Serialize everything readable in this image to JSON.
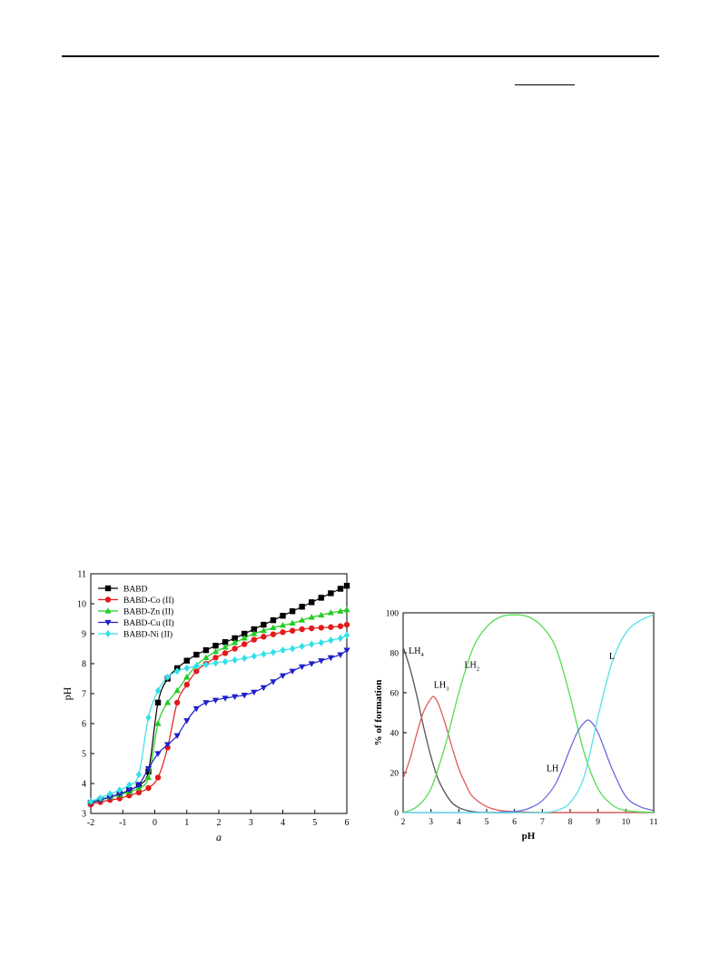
{
  "chart_data": [
    {
      "type": "line",
      "xlabel": "a",
      "ylabel": "pH",
      "xlim": [
        -2,
        6
      ],
      "ylim": [
        3,
        11
      ],
      "xticks": [
        "-2",
        "-1",
        "0",
        "1",
        "2",
        "3",
        "4",
        "5",
        "6"
      ],
      "yticks": [
        "3",
        "4",
        "5",
        "6",
        "7",
        "8",
        "9",
        "10",
        "11"
      ],
      "legend_position": "top-left",
      "grid": false,
      "series": [
        {
          "name": "BABD",
          "color": "#000000",
          "marker": "square",
          "x": [
            -2,
            -1.7,
            -1.4,
            -1.1,
            -0.8,
            -0.5,
            -0.2,
            0.1,
            0.4,
            0.7,
            1,
            1.3,
            1.6,
            1.9,
            2.2,
            2.5,
            2.8,
            3.1,
            3.4,
            3.7,
            4,
            4.3,
            4.6,
            4.9,
            5.2,
            5.5,
            5.8,
            6
          ],
          "y": [
            3.35,
            3.45,
            3.55,
            3.65,
            3.78,
            3.95,
            4.4,
            6.7,
            7.5,
            7.85,
            8.1,
            8.3,
            8.45,
            8.6,
            8.72,
            8.85,
            9.0,
            9.15,
            9.3,
            9.45,
            9.6,
            9.75,
            9.9,
            10.05,
            10.2,
            10.35,
            10.5,
            10.6
          ]
        },
        {
          "name": "BABD-Co (II)",
          "color": "#e41a1c",
          "marker": "circle",
          "x": [
            -2,
            -1.7,
            -1.4,
            -1.1,
            -0.8,
            -0.5,
            -0.2,
            0.1,
            0.4,
            0.7,
            1,
            1.3,
            1.6,
            1.9,
            2.2,
            2.5,
            2.8,
            3.1,
            3.4,
            3.7,
            4,
            4.3,
            4.6,
            4.9,
            5.2,
            5.5,
            5.8,
            6
          ],
          "y": [
            3.3,
            3.38,
            3.45,
            3.5,
            3.6,
            3.7,
            3.85,
            4.2,
            5.2,
            6.7,
            7.3,
            7.75,
            8.0,
            8.2,
            8.35,
            8.5,
            8.65,
            8.8,
            8.9,
            8.98,
            9.05,
            9.1,
            9.15,
            9.18,
            9.2,
            9.22,
            9.25,
            9.3
          ]
        },
        {
          "name": "BABD-Zn (II)",
          "color": "#22cc22",
          "marker": "triangle-up",
          "x": [
            -2,
            -1.7,
            -1.4,
            -1.1,
            -0.8,
            -0.5,
            -0.2,
            0.1,
            0.4,
            0.7,
            1,
            1.3,
            1.6,
            1.9,
            2.2,
            2.5,
            2.8,
            3.1,
            3.4,
            3.7,
            4,
            4.3,
            4.6,
            4.9,
            5.2,
            5.5,
            5.8,
            6
          ],
          "y": [
            3.4,
            3.48,
            3.55,
            3.62,
            3.72,
            3.85,
            4.2,
            6.0,
            6.7,
            7.1,
            7.55,
            7.95,
            8.2,
            8.4,
            8.55,
            8.7,
            8.85,
            9.0,
            9.1,
            9.2,
            9.28,
            9.35,
            9.45,
            9.55,
            9.62,
            9.7,
            9.75,
            9.8
          ]
        },
        {
          "name": "BABD-Cu (II)",
          "color": "#1f1fcc",
          "marker": "triangle-down",
          "x": [
            -2,
            -1.7,
            -1.4,
            -1.1,
            -0.8,
            -0.5,
            -0.2,
            0.1,
            0.4,
            0.7,
            1,
            1.3,
            1.6,
            1.9,
            2.2,
            2.5,
            2.8,
            3.1,
            3.4,
            3.7,
            4,
            4.3,
            4.6,
            4.9,
            5.2,
            5.5,
            5.8,
            6
          ],
          "y": [
            3.35,
            3.45,
            3.55,
            3.65,
            3.78,
            3.95,
            4.5,
            5.0,
            5.3,
            5.6,
            6.1,
            6.5,
            6.7,
            6.78,
            6.85,
            6.9,
            6.95,
            7.05,
            7.2,
            7.4,
            7.6,
            7.75,
            7.9,
            8.0,
            8.1,
            8.2,
            8.3,
            8.45
          ]
        },
        {
          "name": "BABD-Ni (II)",
          "color": "#33e0e8",
          "marker": "diamond",
          "x": [
            -2,
            -1.7,
            -1.4,
            -1.1,
            -0.8,
            -0.5,
            -0.2,
            0.1,
            0.4,
            0.7,
            1,
            1.3,
            1.6,
            1.9,
            2.2,
            2.5,
            2.8,
            3.1,
            3.4,
            3.7,
            4,
            4.3,
            4.6,
            4.9,
            5.2,
            5.5,
            5.8,
            6
          ],
          "y": [
            3.4,
            3.52,
            3.65,
            3.78,
            3.95,
            4.3,
            6.2,
            7.1,
            7.55,
            7.75,
            7.85,
            7.92,
            7.97,
            8.02,
            8.07,
            8.12,
            8.18,
            8.25,
            8.32,
            8.38,
            8.45,
            8.5,
            8.58,
            8.65,
            8.7,
            8.78,
            8.85,
            8.95
          ]
        }
      ]
    },
    {
      "type": "line",
      "xlabel": "pH",
      "ylabel": "% of formation",
      "xlim": [
        2,
        11
      ],
      "ylim": [
        0,
        100
      ],
      "xticks": [
        "2",
        "3",
        "4",
        "5",
        "6",
        "7",
        "8",
        "9",
        "10",
        "11"
      ],
      "yticks": [
        "0",
        "20",
        "40",
        "60",
        "80",
        "100"
      ],
      "grid": false,
      "series": [
        {
          "name": "LH4",
          "color": "#555555",
          "x": [
            2,
            2.25,
            2.5,
            2.75,
            3,
            3.25,
            3.5,
            3.75,
            4,
            4.25,
            4.5,
            5,
            6,
            7,
            8,
            9,
            10,
            11
          ],
          "y": [
            83,
            72,
            58,
            42,
            28,
            17,
            10,
            5,
            2.5,
            1.2,
            0.5,
            0,
            0,
            0,
            0,
            0,
            0,
            0
          ]
        },
        {
          "name": "LH3",
          "color": "#e05a5a",
          "x": [
            2,
            2.25,
            2.5,
            2.75,
            3,
            3.1,
            3.25,
            3.5,
            3.75,
            4,
            4.25,
            4.5,
            5,
            5.5,
            6,
            7,
            8,
            11
          ],
          "y": [
            17,
            27,
            40,
            51,
            57,
            58,
            55,
            45,
            33,
            22,
            14,
            8,
            3,
            1,
            0.5,
            0,
            0,
            0
          ]
        },
        {
          "name": "LH2",
          "color": "#55dd55",
          "x": [
            2,
            2.5,
            3,
            3.5,
            4,
            4.5,
            5,
            5.5,
            6,
            6.5,
            7,
            7.5,
            8,
            8.5,
            9,
            9.5,
            10,
            11
          ],
          "y": [
            0,
            3,
            12,
            33,
            60,
            82,
            93,
            98,
            99,
            98,
            93,
            82,
            58,
            30,
            12,
            4,
            1,
            0
          ]
        },
        {
          "name": "LH",
          "color": "#6a6ae0",
          "x": [
            2,
            5,
            5.5,
            6,
            6.5,
            7,
            7.5,
            8,
            8.25,
            8.5,
            8.7,
            9,
            9.5,
            10,
            10.5,
            11
          ],
          "y": [
            0,
            0,
            0.3,
            0.5,
            2,
            6,
            15,
            32,
            40,
            45,
            46,
            40,
            22,
            8,
            3,
            1
          ]
        },
        {
          "name": "L",
          "color": "#55e0e8",
          "x": [
            2,
            6,
            7,
            7.5,
            8,
            8.5,
            9,
            9.5,
            10,
            10.5,
            11
          ],
          "y": [
            0,
            0,
            0,
            1,
            5,
            18,
            48,
            75,
            90,
            96,
            99
          ]
        }
      ],
      "curve_labels": [
        {
          "text": "LH",
          "sub": "4",
          "series": "LH4"
        },
        {
          "text": "LH",
          "sub": "3",
          "series": "LH3"
        },
        {
          "text": "LH",
          "sub": "2",
          "series": "LH2"
        },
        {
          "text": "LH",
          "sub": "",
          "series": "LH"
        },
        {
          "text": "L",
          "sub": "",
          "series": "L"
        }
      ]
    }
  ]
}
